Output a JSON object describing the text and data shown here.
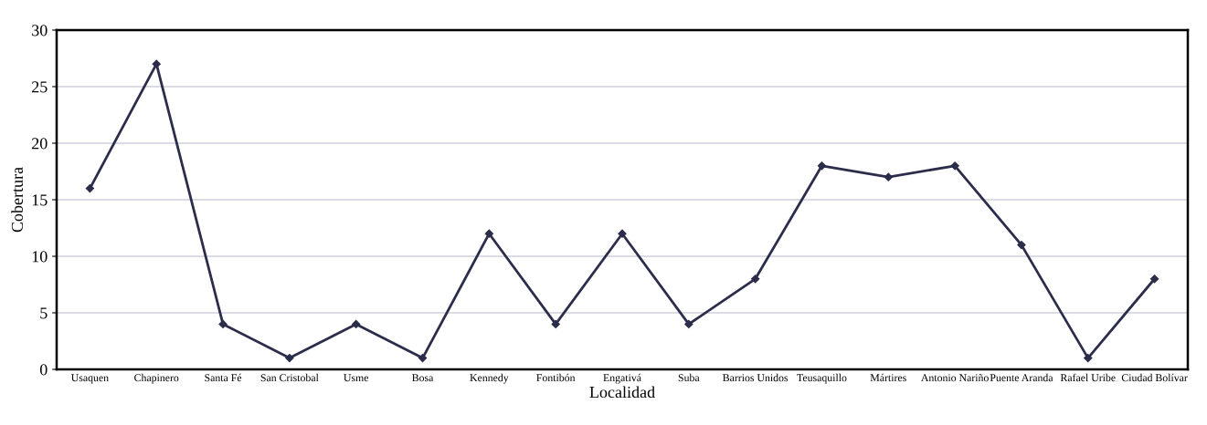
{
  "chart_data": {
    "type": "line",
    "xlabel": "Localidad",
    "ylabel": "Cobertura",
    "categories": [
      "Usaquen",
      "Chapinero",
      "Santa Fé",
      "San Cristobal",
      "Usme",
      "Bosa",
      "Kennedy",
      "Fontibón",
      "Engativá",
      "Suba",
      "Barrios Unidos",
      "Teusaquillo",
      "Mártires",
      "Antonio Nariño",
      "Puente Aranda",
      "Rafael Uribe",
      "Ciudad Bolívar"
    ],
    "series": [
      {
        "color": "#2b2d4a",
        "values": [
          16,
          27,
          4,
          1,
          4,
          1,
          12,
          4,
          12,
          4,
          8,
          18,
          17,
          18,
          11,
          1,
          8
        ]
      }
    ],
    "ylim": [
      0,
      30
    ],
    "yticks": [
      0,
      5,
      10,
      15,
      20,
      25,
      30
    ],
    "grid": "y",
    "marker": "diamond",
    "line_style": "solid"
  }
}
